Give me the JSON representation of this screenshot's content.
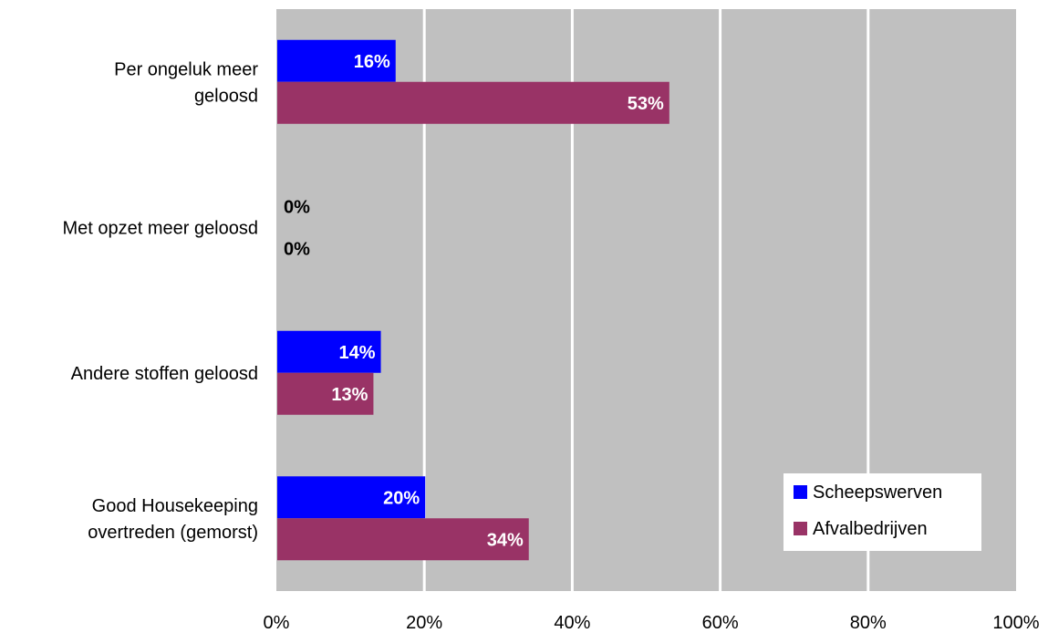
{
  "chart_data": {
    "type": "bar",
    "orientation": "horizontal",
    "categories": [
      [
        "Per ongeluk meer",
        "geloosd"
      ],
      [
        "Met opzet meer geloosd"
      ],
      [
        "Andere stoffen geloosd"
      ],
      [
        "Good Housekeeping",
        "overtreden (gemorst)"
      ]
    ],
    "series": [
      {
        "name": "Scheepswerven",
        "color": "#0000FF",
        "values": [
          16,
          0,
          14,
          20
        ],
        "labels": [
          "16%",
          "0%",
          "14%",
          "20%"
        ]
      },
      {
        "name": "Afvalbedrijven",
        "color": "#993366",
        "values": [
          53,
          0,
          13,
          34
        ],
        "labels": [
          "53%",
          "0%",
          "13%",
          "34%"
        ]
      }
    ],
    "xlim": [
      0,
      100
    ],
    "xticks": [
      0,
      20,
      40,
      60,
      80,
      100
    ],
    "xtick_labels": [
      "0%",
      "20%",
      "40%",
      "60%",
      "80%",
      "100%"
    ],
    "plot_background": "#C0C0C0",
    "gridline_color": "#FFFFFF",
    "grid": true,
    "legend_position": "bottom-right"
  }
}
